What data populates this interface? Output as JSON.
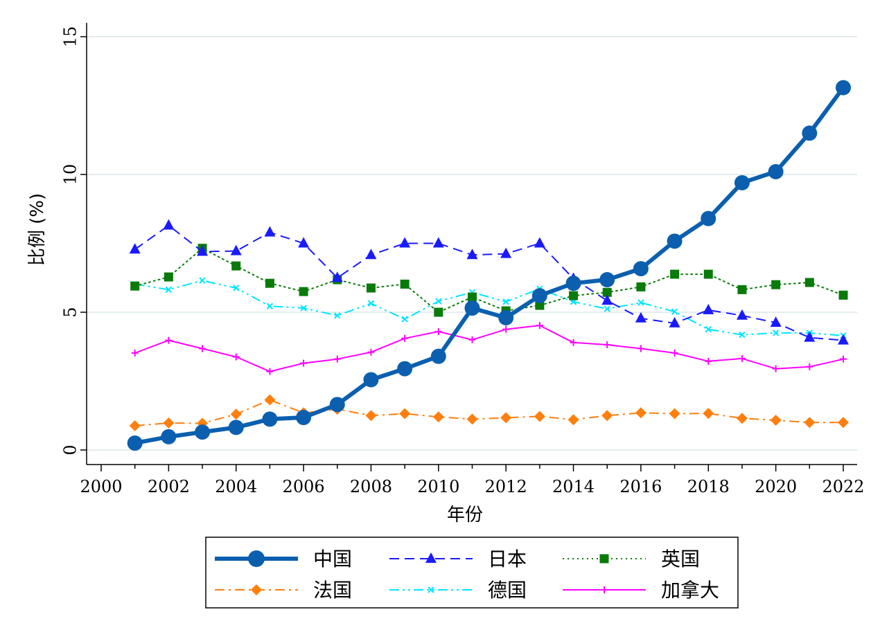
{
  "chart_data": {
    "type": "line",
    "xlabel": "年份",
    "ylabel": "比例 (%)",
    "xlim": [
      2000,
      2022
    ],
    "ylim": [
      0,
      15
    ],
    "x_ticks": [
      "2000",
      "2002",
      "2004",
      "2006",
      "2008",
      "2010",
      "2012",
      "2014",
      "2016",
      "2018",
      "2020",
      "2022"
    ],
    "y_ticks": [
      "0",
      "5",
      "10",
      "15"
    ],
    "grid": "horizontal",
    "legend_position": "bottom",
    "x": [
      2001,
      2002,
      2003,
      2004,
      2005,
      2006,
      2007,
      2008,
      2009,
      2010,
      2011,
      2012,
      2013,
      2014,
      2015,
      2016,
      2017,
      2018,
      2019,
      2020,
      2021,
      2022
    ],
    "series": [
      {
        "name": "中国",
        "color": "#0b5fae",
        "style": "solid-thick",
        "marker": "circle",
        "values": [
          0.25,
          0.48,
          0.65,
          0.82,
          1.12,
          1.18,
          1.65,
          2.55,
          2.95,
          3.4,
          5.15,
          4.8,
          5.6,
          6.05,
          6.18,
          6.58,
          7.58,
          8.4,
          9.7,
          10.1,
          11.5,
          13.15
        ]
      },
      {
        "name": "日本",
        "color": "#1a1aff",
        "style": "dash",
        "marker": "triangle",
        "values": [
          7.28,
          8.15,
          7.2,
          7.22,
          7.9,
          7.5,
          6.25,
          7.08,
          7.5,
          7.5,
          7.08,
          7.12,
          7.5,
          6.22,
          5.42,
          4.78,
          4.6,
          5.08,
          4.88,
          4.62,
          4.08,
          3.98
        ]
      },
      {
        "name": "英国",
        "color": "#0a7a0a",
        "style": "dot",
        "marker": "square",
        "values": [
          5.95,
          6.28,
          7.32,
          6.68,
          6.05,
          5.75,
          6.18,
          5.88,
          6.02,
          5.0,
          5.55,
          5.05,
          5.25,
          5.6,
          5.72,
          5.92,
          6.38,
          6.38,
          5.82,
          6.0,
          6.08,
          5.62
        ]
      },
      {
        "name": "法国",
        "color": "#ff7f0e",
        "style": "dashdot",
        "marker": "diamond",
        "values": [
          0.88,
          0.98,
          0.97,
          1.3,
          1.82,
          1.35,
          1.48,
          1.25,
          1.32,
          1.2,
          1.12,
          1.17,
          1.22,
          1.1,
          1.25,
          1.35,
          1.32,
          1.33,
          1.15,
          1.08,
          1.0,
          1.0
        ]
      },
      {
        "name": "德国",
        "color": "#00e5ff",
        "style": "dashdotdot",
        "marker": "x",
        "values": [
          6.02,
          5.82,
          6.15,
          5.88,
          5.22,
          5.15,
          4.88,
          5.32,
          4.75,
          5.4,
          5.72,
          5.38,
          5.85,
          5.38,
          5.12,
          5.35,
          5.02,
          4.38,
          4.18,
          4.25,
          4.25,
          4.15
        ]
      },
      {
        "name": "加拿大",
        "color": "#ff00ff",
        "style": "solid",
        "marker": "plus",
        "values": [
          3.52,
          3.98,
          3.68,
          3.38,
          2.85,
          3.15,
          3.3,
          3.55,
          4.05,
          4.3,
          4.0,
          4.38,
          4.52,
          3.9,
          3.82,
          3.68,
          3.52,
          3.22,
          3.32,
          2.95,
          3.02,
          3.3
        ]
      }
    ]
  }
}
